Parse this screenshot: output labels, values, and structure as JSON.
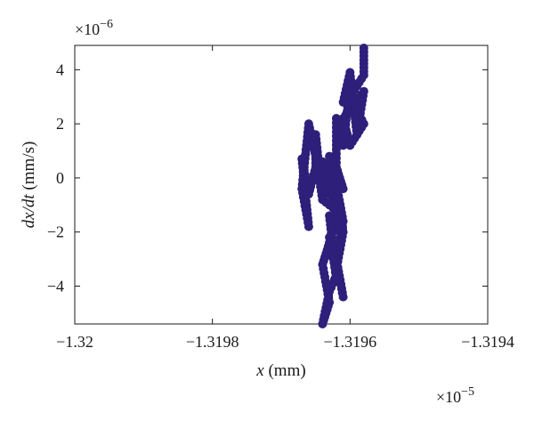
{
  "chart_data": {
    "type": "scatter",
    "title": "",
    "xlabel_var": "x",
    "xlabel_unit": " (mm)",
    "ylabel_var": "dx/dt",
    "ylabel_unit": " (mm/s)",
    "x_exponent_base": "×10",
    "x_exponent": "−5",
    "y_exponent_base": "×10",
    "y_exponent": "−6",
    "xlim": [
      -1.32,
      -1.3194
    ],
    "ylim": [
      -5.4,
      4.9
    ],
    "x_ticks": [
      -1.32,
      -1.3198,
      -1.3196,
      -1.3194
    ],
    "x_tick_labels": [
      "−1.32",
      "−1.3198",
      "−1.3196",
      "−1.3194"
    ],
    "y_ticks": [
      -4,
      -2,
      0,
      2,
      4
    ],
    "y_tick_labels": [
      "−4",
      "−2",
      "0",
      "2",
      "4"
    ],
    "grid": false,
    "marker_color": "#2e1f7a",
    "x_path": [
      -1.31958,
      -1.31958,
      -1.3196,
      -1.31958,
      -1.3196,
      -1.31961,
      -1.31958,
      -1.31959,
      -1.3196,
      -1.31961,
      -1.3196,
      -1.31961,
      -1.31962,
      -1.31962,
      -1.31961,
      -1.31963,
      -1.31962,
      -1.31963,
      -1.31964,
      -1.31962,
      -1.31964,
      -1.31965,
      -1.31965,
      -1.31966,
      -1.31967,
      -1.31966,
      -1.31967,
      -1.31966,
      -1.31965,
      -1.31964,
      -1.31963,
      -1.31962,
      -1.31963,
      -1.31962,
      -1.31961,
      -1.31962,
      -1.31961,
      -1.31962,
      -1.31961,
      -1.31962,
      -1.31963,
      -1.31962,
      -1.31963,
      -1.31964,
      -1.31963,
      -1.31964,
      -1.31963,
      -1.31962,
      -1.31963,
      -1.31962
    ],
    "y_path": [
      4.8,
      3.8,
      3.0,
      2.0,
      1.2,
      2.2,
      3.2,
      1.6,
      3.9,
      2.8,
      3.4,
      1.2,
      2.2,
      0.4,
      -0.4,
      0.8,
      -0.2,
      -0.6,
      0.6,
      -1.2,
      -0.8,
      1.6,
      0.4,
      -0.6,
      0.7,
      -1.8,
      -0.4,
      2.0,
      0.8,
      -0.8,
      0.4,
      -1.2,
      -2.4,
      -3.4,
      -2.0,
      -0.2,
      -1.6,
      -3.0,
      -4.4,
      -3.0,
      -2.2,
      -3.6,
      -4.2,
      -5.4,
      -4.6,
      -3.2,
      -2.4,
      -1.6,
      -1.4,
      -3.8
    ]
  }
}
